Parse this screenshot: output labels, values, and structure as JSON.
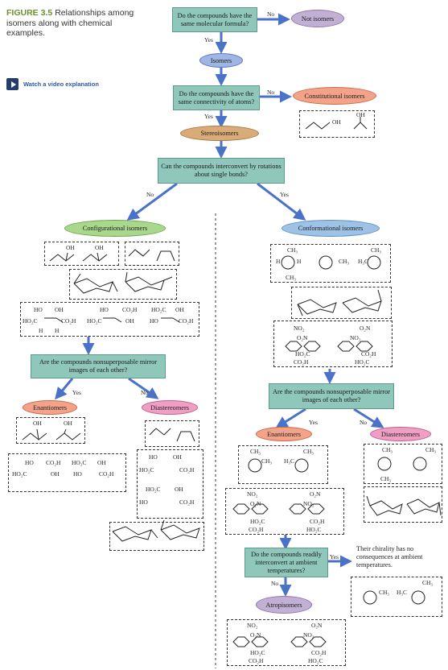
{
  "caption": {
    "figure_label": "FIGURE 3.5",
    "text": "Relationships among isomers along with chemical examples."
  },
  "video_link": {
    "label": "Watch a video explanation",
    "icon": "play-icon"
  },
  "nodes": {
    "q_formula": "Do the compounds have the same molecular formula?",
    "not_isomers": "Not isomers",
    "isomers": "Isomers",
    "q_connectivity": "Do the compounds have the same connectivity of atoms?",
    "constitutional": "Constitutional isomers",
    "stereoisomers": "Stereoisomers",
    "q_rotation": "Can the compounds interconvert by rotations about single bonds?",
    "configurational": "Configurational isomers",
    "conformational": "Conformational isomers",
    "q_mirror_left": "Are the compounds nonsuperposable mirror images of each other?",
    "q_mirror_right": "Are the compounds nonsuperposable mirror images of each other?",
    "enantiomers_left": "Enantiomers",
    "diastereomers_left": "Diastereomers",
    "enantiomers_right": "Enantiomers",
    "diastereomers_right": "Diastereomers",
    "q_interconvert": "Do the compounds readily interconvert at ambient temperatures?",
    "atropisomers": "Atropisomers",
    "chirality_note": "Their chirality has no consequences at ambient temperatures."
  },
  "edge_labels": {
    "no": "No",
    "yes": "Yes"
  },
  "chem_labels": {
    "oh": "OH",
    "ho": "HO",
    "h": "H",
    "ch3": "CH₃",
    "h3c": "H₃C",
    "co2h": "CO₂H",
    "ho2c": "HO₂C",
    "no2": "NO₂",
    "o2n": "O₂N"
  },
  "colors": {
    "question_box": "#8fc7ba",
    "arrow": "#4a72c9",
    "caption_accent": "#6c8f2c"
  }
}
